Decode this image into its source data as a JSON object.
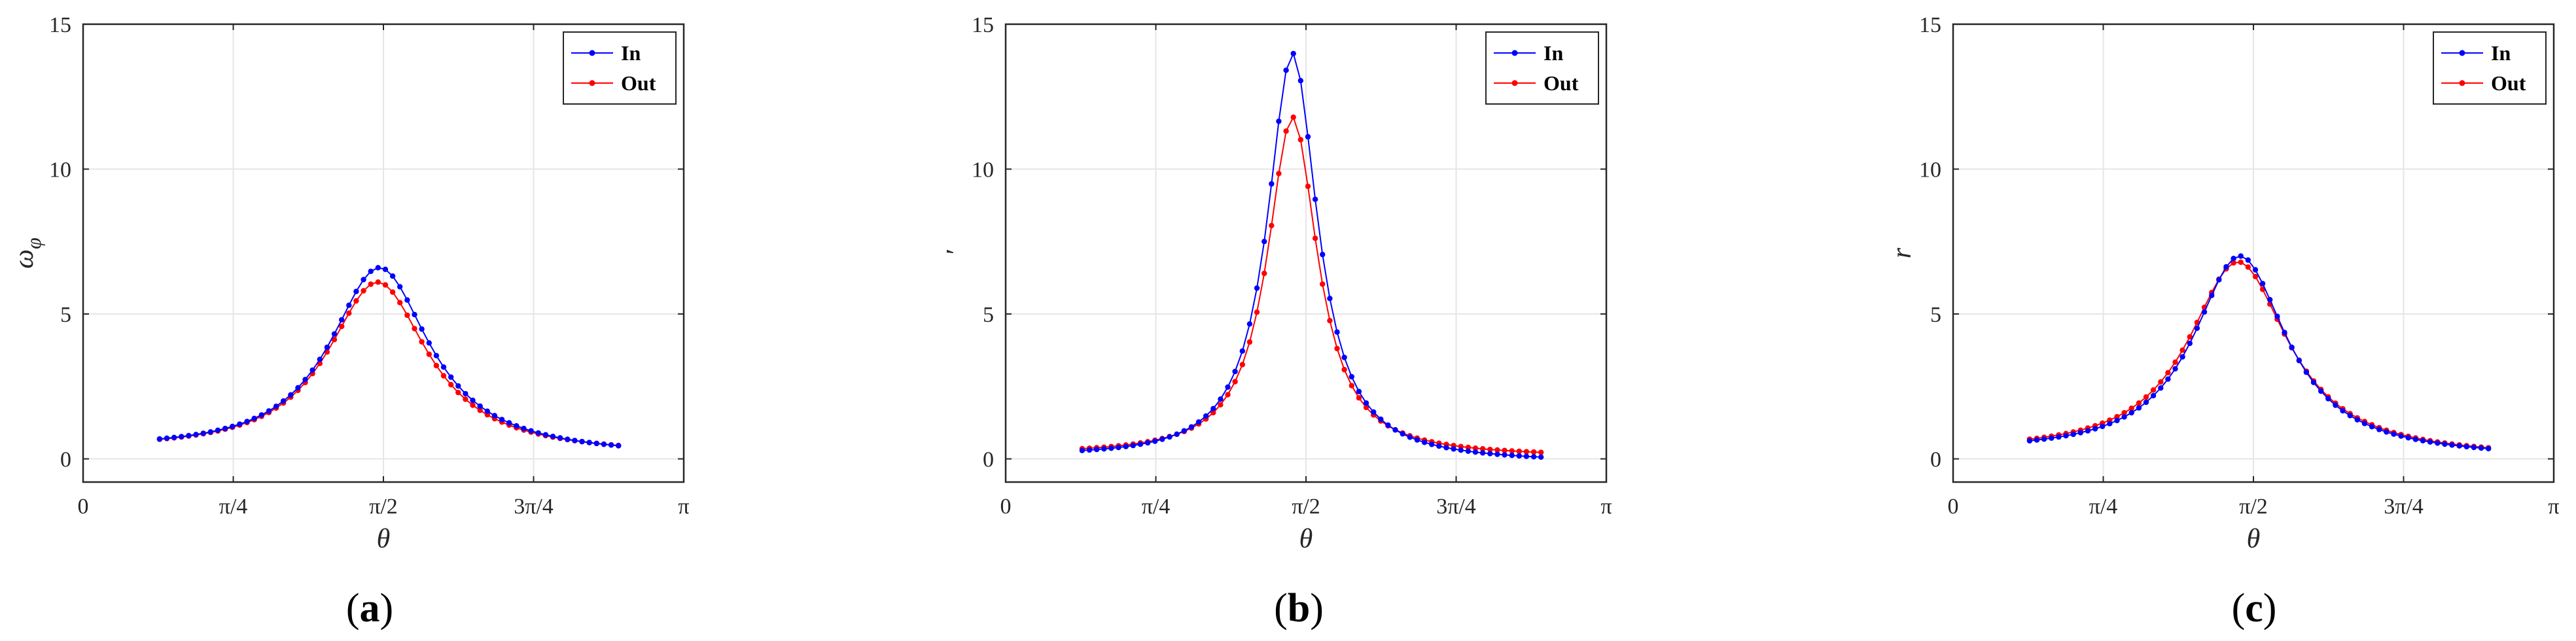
{
  "figure": {
    "legend_entries": [
      "In",
      "Out"
    ],
    "colors": {
      "In": "#0000ff",
      "Out": "#ff0000",
      "grid": "#e6e6e6",
      "axes": "#262626"
    }
  },
  "chart_data": [
    {
      "type": "line",
      "panel_label": "a",
      "panel_label_text": "(a)",
      "xlabel": "θ",
      "ylabel": "ω_φ",
      "ylabel_display": "ω",
      "ylabel_subscript": "φ",
      "xlim": [
        0,
        3.1416
      ],
      "ylim": [
        -0.8,
        15
      ],
      "xticks": [
        0,
        0.7854,
        1.5708,
        2.3562,
        3.1416
      ],
      "xtick_labels": [
        "0",
        "π/4",
        "π/2",
        "3π/4",
        "π"
      ],
      "yticks": [
        0,
        5,
        10,
        15
      ],
      "ytick_labels": [
        "0",
        "5",
        "10",
        "15"
      ],
      "grid": true,
      "legend_position": "top-right",
      "series": [
        {
          "name": "In",
          "color": "#0000ff",
          "peak_x": 1.55,
          "peak_y": 6.6,
          "tail_y": 0.05,
          "start_y": 0.35
        },
        {
          "name": "Out",
          "color": "#ff0000",
          "peak_x": 1.54,
          "peak_y": 6.1,
          "tail_y": 0.1,
          "start_y": 0.35
        }
      ]
    },
    {
      "type": "line",
      "panel_label": "b",
      "panel_label_text": "(b)",
      "xlabel": "θ",
      "ylabel": "′",
      "xlim": [
        0,
        3.1416
      ],
      "ylim": [
        -0.8,
        15
      ],
      "xticks": [
        0,
        0.7854,
        1.5708,
        2.3562,
        3.1416
      ],
      "xtick_labels": [
        "0",
        "π/4",
        "π/2",
        "3π/4",
        "π"
      ],
      "yticks": [
        0,
        5,
        10,
        15
      ],
      "ytick_labels": [
        "0",
        "5",
        "10",
        "15"
      ],
      "grid": true,
      "legend_position": "top-right",
      "series": [
        {
          "name": "In",
          "color": "#0000ff",
          "peak_x": 1.5,
          "peak_y": 14.0,
          "tail_y": -0.15,
          "start_y": 0.1
        },
        {
          "name": "Out",
          "color": "#ff0000",
          "peak_x": 1.5,
          "peak_y": 11.8,
          "tail_y": 0.05,
          "start_y": 0.15
        }
      ]
    },
    {
      "type": "line",
      "panel_label": "c",
      "panel_label_text": "(c)",
      "xlabel": "θ",
      "ylabel": "r",
      "xlim": [
        0,
        3.1416
      ],
      "ylim": [
        -0.8,
        15
      ],
      "xticks": [
        0,
        0.7854,
        1.5708,
        2.3562,
        3.1416
      ],
      "xtick_labels": [
        "0",
        "π/4",
        "π/2",
        "3π/4",
        "π"
      ],
      "yticks": [
        0,
        5,
        10,
        15
      ],
      "ytick_labels": [
        "0",
        "5",
        "10",
        "15"
      ],
      "grid": true,
      "legend_position": "top-right",
      "series": [
        {
          "name": "In",
          "color": "#0000ff",
          "peak_x": 1.5,
          "peak_y": 7.0,
          "tail_y": 0.0,
          "start_y": 0.25
        },
        {
          "name": "Out",
          "color": "#ff0000",
          "peak_x": 1.49,
          "peak_y": 6.8,
          "tail_y": 0.0,
          "start_y": 0.25
        }
      ]
    }
  ]
}
